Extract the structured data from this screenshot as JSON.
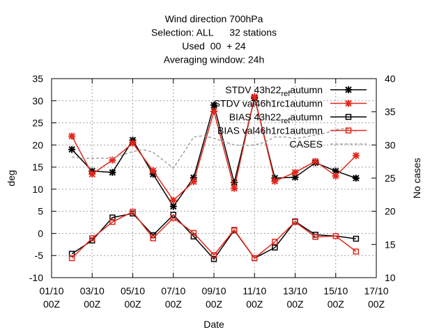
{
  "chart_data": {
    "type": "line",
    "title_lines": [
      "Wind direction 700hPa",
      "Selection: ALL      32 stations",
      "Used  00  + 24",
      "Averaging window: 24h"
    ],
    "xlabel": "Date",
    "ylabel": "deg",
    "y2label": "No cases",
    "x_ticks": [
      [
        "01/10",
        "00Z"
      ],
      [
        "03/10",
        "00Z"
      ],
      [
        "05/10",
        "00Z"
      ],
      [
        "07/10",
        "00Z"
      ],
      [
        "09/10",
        "00Z"
      ],
      [
        "11/10",
        "00Z"
      ],
      [
        "13/10",
        "00Z"
      ],
      [
        "15/10",
        "00Z"
      ],
      [
        "17/10",
        "00Z"
      ]
    ],
    "xlim": [
      1,
      17
    ],
    "ylim": [
      -10,
      35
    ],
    "y_ticks": [
      -10,
      -5,
      0,
      5,
      10,
      15,
      20,
      25,
      30,
      35
    ],
    "y2lim": [
      10,
      40
    ],
    "y2_ticks": [
      10,
      15,
      20,
      25,
      30,
      35,
      40
    ],
    "grid": true,
    "legend_position": "top-right",
    "x": [
      2,
      3,
      4,
      5,
      6,
      7,
      8,
      9,
      10,
      11,
      12,
      13,
      14,
      15,
      16
    ],
    "series": [
      {
        "name": "STDV 43h22_ref_autumn",
        "legend_label": "STDV 43h22",
        "legend_sub": "ref",
        "legend_tail": "autumn",
        "color": "#000000",
        "marker": "star",
        "axis": "y1",
        "values": [
          19.0,
          14.1,
          13.8,
          21.1,
          13.4,
          6.1,
          12.6,
          29.0,
          11.5,
          30.6,
          12.5,
          12.7,
          16.0,
          14.1,
          12.5
        ]
      },
      {
        "name": "STDV val46h1rc1_autumn",
        "legend_label": "STDV val46h1rc1",
        "legend_sub": "",
        "legend_tail": "autumn",
        "color": "#e3261b",
        "marker": "star",
        "axis": "y1",
        "values": [
          22.0,
          13.4,
          16.6,
          20.4,
          14.2,
          7.5,
          11.7,
          27.6,
          10.2,
          30.9,
          11.8,
          13.8,
          16.3,
          13.0,
          17.6
        ]
      },
      {
        "name": "BIAS 43h22_ref_autumn",
        "legend_label": "BIAS 43h22",
        "legend_sub": "ref",
        "legend_tail": "autumn",
        "color": "#000000",
        "marker": "square",
        "axis": "y1",
        "values": [
          -4.6,
          -1.6,
          3.6,
          4.5,
          -0.4,
          4.2,
          -0.7,
          -5.8,
          0.7,
          -5.6,
          -3.2,
          2.7,
          -0.3,
          -0.6,
          -1.2
        ]
      },
      {
        "name": "BIAS val46h1rc1_autumn",
        "legend_label": "BIAS val46h1rc1",
        "legend_sub": "",
        "legend_tail": "autumn",
        "color": "#e3261b",
        "marker": "square",
        "axis": "y1",
        "values": [
          -5.6,
          -1.1,
          2.6,
          4.9,
          -1.1,
          3.5,
          0.1,
          -4.9,
          0.8,
          -5.6,
          -1.9,
          2.6,
          -0.8,
          -0.6,
          -4.1
        ]
      },
      {
        "name": "CASES",
        "legend_label": "CASES",
        "legend_sub": "",
        "legend_tail": "",
        "color": "#a0a0a0",
        "marker": "none",
        "dash": true,
        "axis": "y2",
        "x": [
          2,
          2.5,
          3,
          3.5,
          4,
          4.5,
          5,
          5.5,
          6,
          6.5,
          7,
          7.5,
          8,
          8.5,
          9,
          9.5,
          10,
          10.5,
          11,
          11.5,
          12,
          12.5,
          13,
          13.5,
          14,
          14.5,
          15,
          15.5,
          16
        ],
        "values": [
          28.2,
          28.0,
          28.0,
          28.0,
          28.0,
          28.5,
          29.0,
          29.3,
          28.9,
          27.7,
          26.5,
          28.8,
          31.2,
          31.4,
          31.0,
          30.5,
          30.0,
          29.9,
          30.0,
          30.4,
          31.2,
          31.2,
          31.0,
          31.2,
          31.5,
          31.8,
          32.3,
          32.5,
          32.0
        ]
      }
    ]
  }
}
